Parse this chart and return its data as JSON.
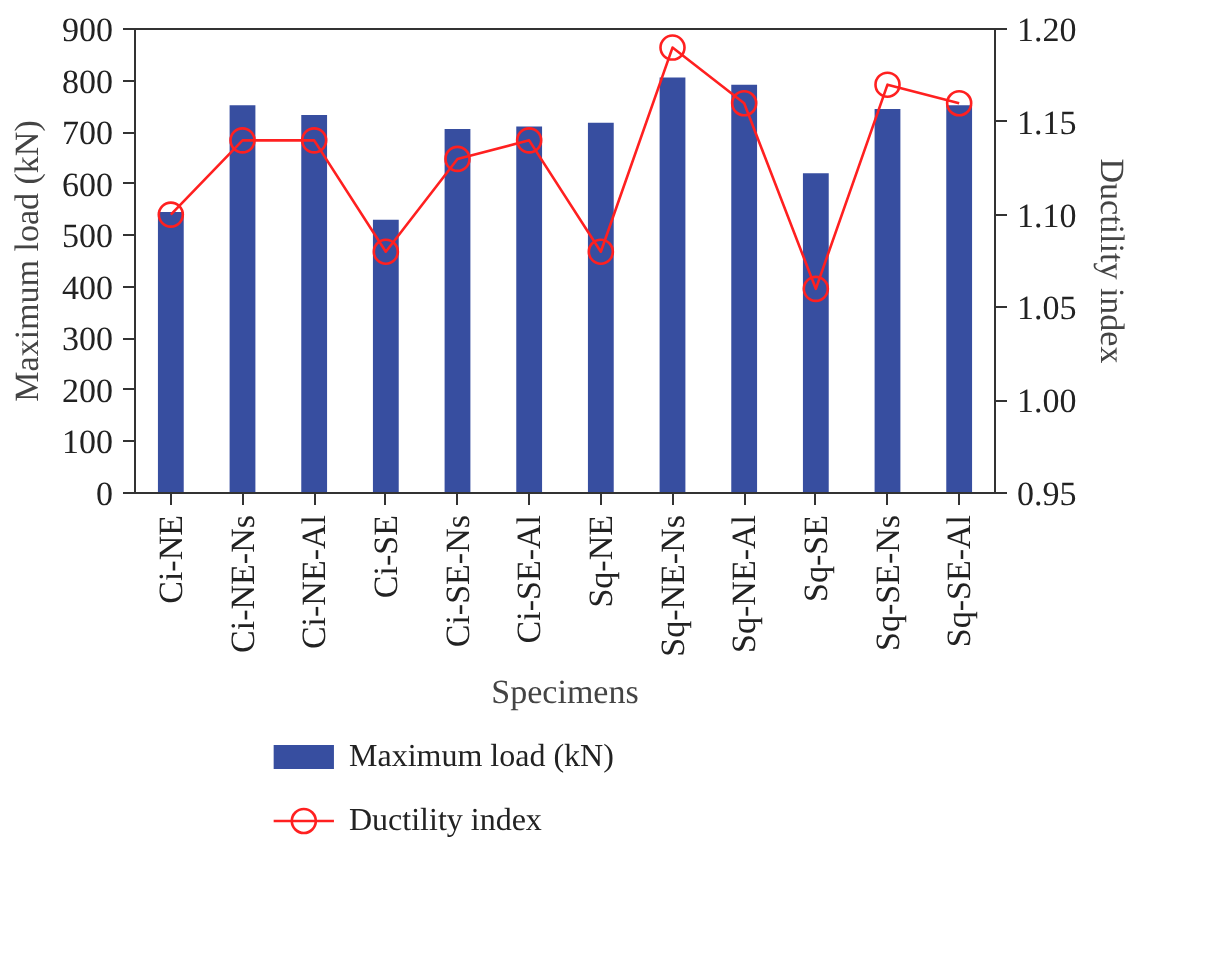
{
  "chart_data": {
    "type": "bar",
    "xlabel": "Specimens",
    "ylabel": "Maximum load (kN)",
    "y2label": "Ductility index",
    "categories": [
      "Ci-NE",
      "Ci-NE-Ns",
      "Ci-NE-Al",
      "Ci-SE",
      "Ci-SE-Ns",
      "Ci-SE-Al",
      "Sq-NE",
      "Sq-NE-Ns",
      "Sq-NE-Al",
      "Sq-SE",
      "Sq-SE-Ns",
      "Sq-SE-Al"
    ],
    "series": [
      {
        "name": "Maximum load (kN)",
        "type": "bar",
        "color": "#374ea0",
        "values": [
          545,
          752,
          733,
          530,
          706,
          711,
          718,
          806,
          792,
          620,
          745,
          752
        ]
      },
      {
        "name": "Ductility index",
        "type": "line",
        "axis": "y2",
        "color": "#ff2020",
        "marker": "circle",
        "values": [
          1.1,
          1.14,
          1.14,
          1.08,
          1.13,
          1.14,
          1.08,
          1.19,
          1.16,
          1.06,
          1.17,
          1.16
        ]
      }
    ],
    "ylim": [
      0,
      900
    ],
    "yticks": [
      0,
      100,
      200,
      300,
      400,
      500,
      600,
      700,
      800,
      900
    ],
    "y2lim": [
      0.95,
      1.2
    ],
    "y2ticks": [
      {
        "value": 0.95,
        "label": "0.95"
      },
      {
        "value": 1.0,
        "label": "1.00"
      },
      {
        "value": 1.05,
        "label": "1.05"
      },
      {
        "value": 1.1,
        "label": "1.10"
      },
      {
        "value": 1.15,
        "label": "1.15"
      },
      {
        "value": 1.2,
        "label": "1.20"
      }
    ],
    "legend": "bottom",
    "grid": false
  }
}
